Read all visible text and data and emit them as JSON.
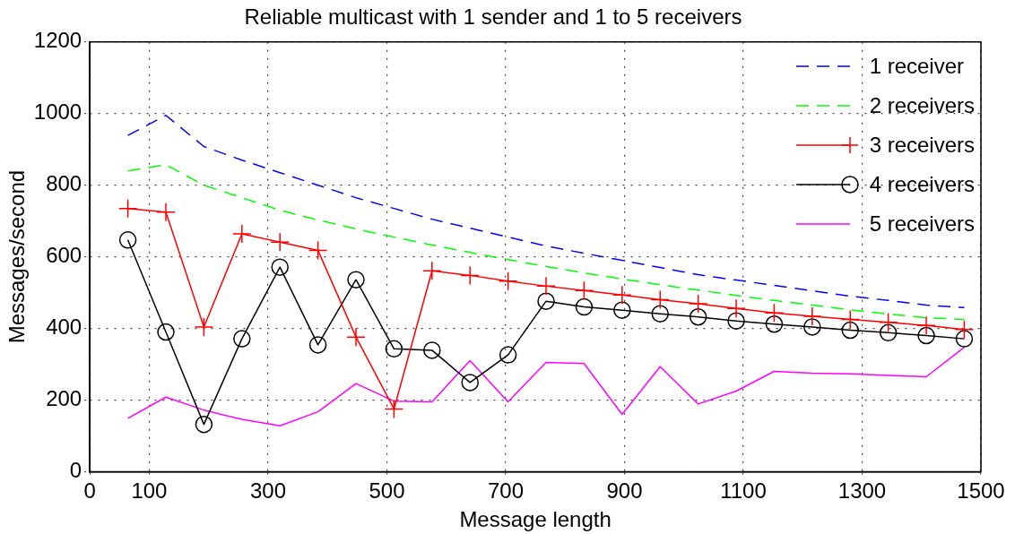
{
  "chart_data": {
    "type": "line",
    "title": "Reliable multicast with 1 sender and 1 to 5 receivers",
    "xlabel": "Message length",
    "ylabel": "Messages/second",
    "x": [
      64,
      128,
      192,
      256,
      320,
      384,
      448,
      512,
      576,
      640,
      704,
      768,
      832,
      896,
      960,
      1024,
      1088,
      1152,
      1216,
      1280,
      1344,
      1408,
      1472
    ],
    "xlim": [
      0,
      1500
    ],
    "xticks": [
      0,
      100,
      300,
      500,
      700,
      900,
      1100,
      1300,
      1500
    ],
    "ylim": [
      0,
      1200
    ],
    "yticks": [
      0,
      200,
      400,
      600,
      800,
      1000,
      1200
    ],
    "grid": true,
    "legend": "top right",
    "series": [
      {
        "name": "1 receiver",
        "color": "#0000ff",
        "line_style": "dashed",
        "marker": "none",
        "values": [
          939,
          995,
          908,
          870,
          835,
          800,
          765,
          735,
          705,
          680,
          655,
          630,
          610,
          590,
          570,
          550,
          535,
          520,
          505,
          490,
          478,
          465,
          458
        ]
      },
      {
        "name": "2 receivers",
        "color": "#00ff00",
        "line_style": "dashed",
        "marker": "none",
        "values": [
          840,
          857,
          800,
          765,
          730,
          703,
          678,
          655,
          633,
          612,
          592,
          573,
          555,
          538,
          522,
          507,
          492,
          478,
          465,
          452,
          440,
          430,
          425
        ]
      },
      {
        "name": "3 receivers",
        "color": "#ff0000",
        "line_style": "solid",
        "marker": "cross",
        "values": [
          735,
          725,
          404,
          664,
          641,
          618,
          376,
          175,
          561,
          548,
          532,
          518,
          506,
          493,
          480,
          469,
          456,
          443,
          434,
          425,
          417,
          408,
          397
        ]
      },
      {
        "name": "4 receivers",
        "color": "#000000",
        "line_style": "solid",
        "marker": "circle",
        "values": [
          647,
          390,
          132,
          371,
          571,
          354,
          536,
          343,
          339,
          249,
          326,
          476,
          460,
          451,
          441,
          432,
          421,
          412,
          404,
          395,
          388,
          380,
          371
        ]
      },
      {
        "name": "5 receivers",
        "color": "#ff00ff",
        "line_style": "solid",
        "marker": "none",
        "values": [
          149,
          208,
          172,
          146,
          128,
          167,
          246,
          197,
          195,
          310,
          195,
          305,
          302,
          160,
          293,
          189,
          225,
          280,
          275,
          273,
          269,
          265,
          347
        ]
      }
    ]
  }
}
